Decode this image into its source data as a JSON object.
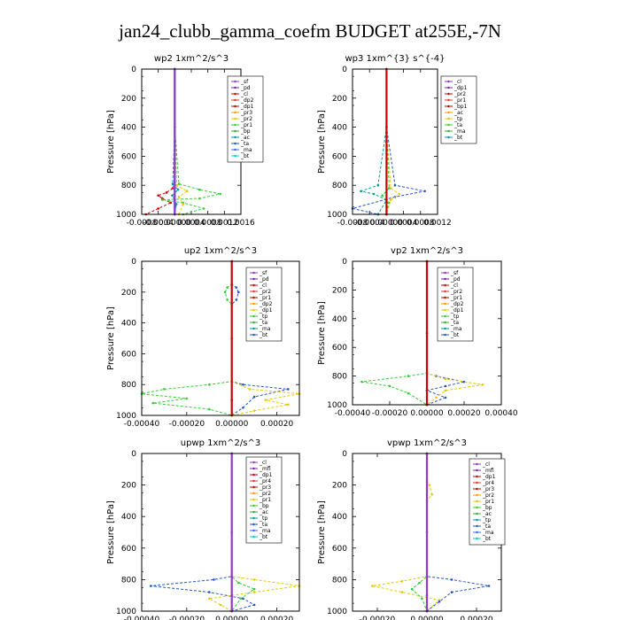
{
  "page_title": "jan24_clubb_gamma_coefm  BUDGET at255E,-7N",
  "chart_data": [
    {
      "type": "line",
      "title": "wp2   1xm^2/s^3",
      "ylabel": "Pressure [hPa]",
      "xlim": [
        -0.0008,
        0.0016
      ],
      "ylim": [
        1000,
        0
      ],
      "xticks": [
        -0.0008,
        -0.0004,
        0.0,
        0.0004,
        0.0008,
        0.0012,
        0.0016
      ],
      "xtick_labels": [
        "-0.0008",
        "-0.0004",
        "0.00000",
        "0.0004",
        "0.0008",
        "0.0012",
        "0.0016"
      ],
      "yticks": [
        0,
        200,
        400,
        600,
        800,
        1000
      ],
      "legend_position": "top-right",
      "legend": [
        "_sf",
        "_pd",
        "_cl",
        "_dp2",
        "_dp1",
        "_pr3",
        "_pr2",
        "_pr1",
        "_bp",
        "_ac",
        "_ta",
        "_ma",
        "_bt"
      ],
      "series": [
        {
          "name": "_dp1",
          "color": "#cc0000",
          "x": [
            0,
            0,
            0,
            -5e-05,
            -0.0002,
            -0.0004,
            -0.0003,
            -0.0001,
            -0.0004,
            -0.0007
          ],
          "y": [
            0,
            400,
            780,
            820,
            850,
            870,
            890,
            920,
            960,
            1000
          ]
        },
        {
          "name": "_pr1",
          "color": "#33cc33",
          "x": [
            0,
            0,
            0.0001,
            0.0006,
            0.0011,
            0.0006,
            -0.0003,
            0.0002,
            0.0007,
            0.0002
          ],
          "y": [
            0,
            400,
            790,
            830,
            860,
            890,
            900,
            920,
            960,
            1000
          ]
        },
        {
          "name": "_pr2",
          "color": "#e6c800",
          "x": [
            0,
            0,
            5e-05,
            0.0003,
            0.0001,
            0.0002,
            0.0001
          ],
          "y": [
            0,
            400,
            800,
            840,
            880,
            930,
            1000
          ]
        },
        {
          "name": "_ac",
          "color": "#009999",
          "x": [
            0,
            0,
            -5e-05,
            8e-05,
            -6e-05,
            4e-05,
            0
          ],
          "y": [
            0,
            400,
            790,
            830,
            870,
            930,
            1000
          ]
        },
        {
          "name": "_bt",
          "color": "#00cccc",
          "x": [
            0,
            0,
            0,
            0
          ],
          "y": [
            0,
            500,
            900,
            1000
          ]
        },
        {
          "name": "_sf",
          "color": "#9933cc",
          "x": [
            0,
            0,
            0,
            0
          ],
          "y": [
            0,
            500,
            900,
            1000
          ]
        }
      ]
    },
    {
      "type": "line",
      "title": "wp3   1xm^{3} s^{-4}",
      "ylabel": "Pressure [hPa]",
      "xlim": [
        -0.0008,
        0.0012
      ],
      "ylim": [
        1000,
        0
      ],
      "xticks": [
        -0.0008,
        -0.0004,
        0.0,
        0.0004,
        0.0008,
        0.0012
      ],
      "xtick_labels": [
        "-0.0008",
        "-0.0004",
        "0.00000",
        "0.0004",
        "0.0008",
        "0.0012"
      ],
      "yticks": [
        0,
        200,
        400,
        600,
        800,
        1000
      ],
      "legend_position": "top-right",
      "legend": [
        "_cl",
        "_dp1",
        "_pr2",
        "_pr1",
        "_bp1",
        "_ac",
        "_tp",
        "_ta",
        "_ma",
        "_bt"
      ],
      "series": [
        {
          "name": "_tp",
          "color": "#2255cc",
          "x": [
            0,
            0,
            0.0002,
            0.0009,
            0.0002,
            -0.0008,
            -0.0002
          ],
          "y": [
            0,
            400,
            800,
            840,
            880,
            960,
            1000
          ]
        },
        {
          "name": "_ac",
          "color": "#009999",
          "x": [
            0,
            0,
            -0.0002,
            -0.0006,
            -0.0003,
            0,
            -0.0002
          ],
          "y": [
            0,
            400,
            800,
            840,
            860,
            900,
            1000
          ]
        },
        {
          "name": "_pr2",
          "color": "#e6c800",
          "x": [
            0,
            0,
            0.0001,
            0.0003,
            0.0001,
            0
          ],
          "y": [
            0,
            400,
            820,
            860,
            900,
            1000
          ]
        },
        {
          "name": "_pr1",
          "color": "#33cc33",
          "x": [
            0,
            0,
            6e-05,
            -0.0001,
            5e-05,
            0
          ],
          "y": [
            0,
            400,
            820,
            870,
            920,
            1000
          ]
        },
        {
          "name": "_cl",
          "color": "#cc0000",
          "x": [
            0,
            0,
            0,
            0
          ],
          "y": [
            0,
            500,
            900,
            1000
          ]
        }
      ]
    },
    {
      "type": "line",
      "title": "up2   1xm^2/s^3",
      "ylabel": "Pressure [hPa]",
      "xlim": [
        -0.0004,
        0.0003
      ],
      "ylim": [
        1000,
        0
      ],
      "xticks": [
        -0.0004,
        -0.0002,
        0.0,
        0.0002
      ],
      "xtick_labels": [
        "-0.00040",
        "-0.00020",
        "0.00000",
        "0.00020"
      ],
      "yticks": [
        0,
        200,
        400,
        600,
        800,
        1000
      ],
      "legend_position": "top-right",
      "legend": [
        "_sf",
        "_pd",
        "_cl",
        "_pr2",
        "_pr1",
        "_dp2",
        "_dp1",
        "_tp",
        "_ta",
        "_ma",
        "_bt"
      ],
      "series": [
        {
          "name": "_tp",
          "color": "#2255cc",
          "x": [
            0,
            0,
            2e-05,
            3e-05,
            2e-05,
            0,
            0,
            5e-05,
            0.00025,
            0.0001,
            5e-05,
            0
          ],
          "y": [
            0,
            150,
            170,
            200,
            250,
            280,
            780,
            800,
            830,
            880,
            950,
            1000
          ]
        },
        {
          "name": "_pr1",
          "color": "#33cc33",
          "x": [
            0,
            0,
            -2e-05,
            -3e-05,
            -2e-05,
            0,
            0,
            -0.0001,
            -0.0003,
            -0.0004,
            -0.0002,
            -0.00035,
            -0.0001,
            0
          ],
          "y": [
            0,
            150,
            170,
            200,
            250,
            280,
            780,
            800,
            830,
            860,
            890,
            920,
            960,
            1000
          ]
        },
        {
          "name": "_pr2",
          "color": "#e6c800",
          "x": [
            0,
            0,
            8e-05,
            0.0003,
            0.00015,
            0.00025,
            0.0001,
            0
          ],
          "y": [
            0,
            780,
            830,
            860,
            900,
            930,
            970,
            1000
          ]
        },
        {
          "name": "_cl",
          "color": "#cc0000",
          "x": [
            0,
            0,
            0,
            0
          ],
          "y": [
            0,
            500,
            900,
            1000
          ]
        }
      ]
    },
    {
      "type": "line",
      "title": "vp2   1xm^2/s^3",
      "ylabel": "Pressure [hPa]",
      "xlim": [
        -0.0004,
        0.0004
      ],
      "ylim": [
        1000,
        0
      ],
      "xticks": [
        -0.0004,
        -0.0002,
        0.0,
        0.0002,
        0.0004
      ],
      "xtick_labels": [
        "-0.00040",
        "-0.00020",
        "0.00000",
        "0.00020",
        "0.00040"
      ],
      "yticks": [
        0,
        200,
        400,
        600,
        800,
        1000
      ],
      "legend_position": "top-right",
      "legend": [
        "_sf",
        "_pd",
        "_cl",
        "_pr2",
        "_pr1",
        "_dp2",
        "_dp1",
        "_tp",
        "_ta",
        "_ma",
        "_bt"
      ],
      "series": [
        {
          "name": "_tp",
          "color": "#2255cc",
          "x": [
            0,
            0,
            5e-05,
            0.0002,
            0.0001,
            0,
            0.0001,
            0
          ],
          "y": [
            0,
            780,
            800,
            840,
            870,
            900,
            950,
            1000
          ]
        },
        {
          "name": "_pr1",
          "color": "#33cc33",
          "x": [
            0,
            0,
            -0.0001,
            -0.00035,
            -0.0002,
            -0.0001,
            0
          ],
          "y": [
            0,
            780,
            800,
            840,
            870,
            920,
            1000
          ]
        },
        {
          "name": "_pr2",
          "color": "#e6c800",
          "x": [
            0,
            0,
            0.0001,
            0.0003,
            0.0001,
            5e-05,
            0
          ],
          "y": [
            0,
            780,
            820,
            860,
            900,
            950,
            1000
          ]
        },
        {
          "name": "_cl",
          "color": "#cc0000",
          "x": [
            0,
            0,
            0,
            0
          ],
          "y": [
            0,
            500,
            900,
            1000
          ]
        }
      ]
    },
    {
      "type": "line",
      "title": "upwp   1xm^2/s^3",
      "ylabel": "Pressure [hPa]",
      "xlim": [
        -0.0004,
        0.0003
      ],
      "ylim": [
        1000,
        0
      ],
      "xticks": [
        -0.0004,
        -0.0002,
        0.0,
        0.0002
      ],
      "xtick_labels": [
        "-0.00040",
        "-0.00020",
        "0.00000",
        "0.00020"
      ],
      "yticks": [
        0,
        200,
        400,
        600,
        800,
        1000
      ],
      "legend_position": "top-right",
      "legend": [
        "_cl",
        "_mfl",
        "_dp1",
        "_pr4",
        "_pr3",
        "_pr2",
        "_pr1",
        "_bp",
        "_ac",
        "_tp",
        "_ta",
        "_ma",
        "_bt"
      ],
      "series": [
        {
          "name": "_tp",
          "color": "#2255cc",
          "x": [
            0,
            0,
            -8e-05,
            -0.00036,
            -0.0001,
            5e-05,
            0.0001,
            0
          ],
          "y": [
            0,
            780,
            800,
            840,
            880,
            920,
            960,
            1000
          ]
        },
        {
          "name": "_pr2",
          "color": "#e6c800",
          "x": [
            0,
            0,
            0.0001,
            0.0003,
            0.0001,
            -0.0001,
            -5e-05,
            0
          ],
          "y": [
            0,
            780,
            800,
            840,
            880,
            920,
            960,
            1000
          ]
        },
        {
          "name": "_pr1",
          "color": "#33cc33",
          "x": [
            0,
            0,
            3e-05,
            0.0001,
            4e-05,
            0
          ],
          "y": [
            0,
            780,
            820,
            860,
            920,
            1000
          ]
        },
        {
          "name": "_cl",
          "color": "#9933cc",
          "x": [
            0,
            0,
            0,
            0
          ],
          "y": [
            0,
            500,
            900,
            1000
          ]
        }
      ]
    },
    {
      "type": "line",
      "title": "vpwp   1xm^2/s^3",
      "ylabel": "Pressure [hPa]",
      "xlim": [
        -0.0003,
        0.0003
      ],
      "ylim": [
        1000,
        0
      ],
      "xticks": [
        -0.0002,
        0.0,
        0.0002
      ],
      "xtick_labels": [
        "-0.00020",
        "0.00000",
        "0.00020"
      ],
      "yticks": [
        0,
        200,
        400,
        600,
        800,
        1000
      ],
      "legend_position": "top-right",
      "legend": [
        "_cl",
        "_mfl",
        "_dp1",
        "_pr4",
        "_pr3",
        "_pr2",
        "_pr1",
        "_bp",
        "_ac",
        "_tp",
        "_ta",
        "_ma",
        "_bt"
      ],
      "series": [
        {
          "name": "_pr2",
          "color": "#e6c800",
          "x": [
            0,
            0,
            1e-05,
            2e-05,
            0,
            0,
            -0.0001,
            -0.00022,
            -0.0001,
            5e-05,
            0
          ],
          "y": [
            0,
            180,
            200,
            260,
            300,
            780,
            810,
            840,
            880,
            930,
            1000
          ]
        },
        {
          "name": "_tp",
          "color": "#2255cc",
          "x": [
            0,
            0,
            0.0001,
            0.00025,
            0.0001,
            5e-05,
            0
          ],
          "y": [
            0,
            780,
            800,
            840,
            880,
            940,
            1000
          ]
        },
        {
          "name": "_pr1",
          "color": "#33cc33",
          "x": [
            0,
            0,
            -3e-05,
            -6e-05,
            -2e-05,
            0
          ],
          "y": [
            0,
            780,
            820,
            860,
            920,
            1000
          ]
        },
        {
          "name": "_cl",
          "color": "#9933cc",
          "x": [
            0,
            0,
            0,
            0
          ],
          "y": [
            0,
            500,
            900,
            1000
          ]
        }
      ]
    }
  ]
}
